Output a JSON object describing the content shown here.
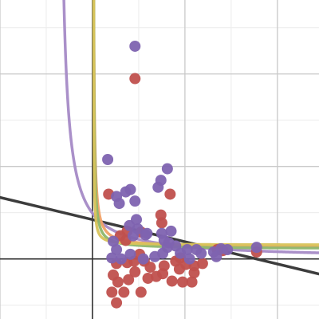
{
  "chart_data": {
    "type": "scatter",
    "title": "",
    "xlabel": "",
    "ylabel": "",
    "xlim": [
      -2,
      4.9
    ],
    "ylim": [
      -1.3,
      5.6
    ],
    "grid": true,
    "major_grid_step": 2,
    "minor_grid_step": 1,
    "axis_lines": {
      "x_zero": true,
      "y_zero": true
    },
    "colors": {
      "background": "#ffffff",
      "minor_grid": "#ececec",
      "major_grid": "#c9c9c9",
      "axis": "#2f2f2f",
      "purple_points": "#7e63b0",
      "red_points": "#c0504d",
      "curve_yellow": "#d8c35a",
      "curve_green": "#8db66b",
      "curve_orange": "#f0a267",
      "curve_lavender": "#a58ac6",
      "line_dark": "#3c3c3c"
    },
    "series": [
      {
        "color": "purple_points",
        "points": [
          [
            0.92,
            4.6
          ],
          [
            0.33,
            2.15
          ],
          [
            0.72,
            1.45
          ],
          [
            0.82,
            1.5
          ],
          [
            0.92,
            1.25
          ],
          [
            0.52,
            1.35
          ],
          [
            0.58,
            1.2
          ],
          [
            1.42,
            1.55
          ],
          [
            1.48,
            1.7
          ],
          [
            1.62,
            1.95
          ],
          [
            0.8,
            0.72
          ],
          [
            0.88,
            0.5
          ],
          [
            0.98,
            0.65
          ],
          [
            1.15,
            0.52
          ],
          [
            1.5,
            0.55
          ],
          [
            1.55,
            0.4
          ],
          [
            1.62,
            0.25
          ],
          [
            1.8,
            0.28
          ],
          [
            2.05,
            0.2
          ],
          [
            2.25,
            0.2
          ],
          [
            2.35,
            0.12
          ],
          [
            2.62,
            0.15
          ],
          [
            2.68,
            0.05
          ],
          [
            0.52,
            0.2
          ],
          [
            0.45,
            0.38
          ],
          [
            0.42,
            0.02
          ],
          [
            0.62,
            0.0
          ],
          [
            0.82,
            0.1
          ],
          [
            1.1,
            0.0
          ],
          [
            1.35,
            0.05
          ],
          [
            1.52,
            0.12
          ],
          [
            2.1,
            0.0
          ],
          [
            1.9,
            0.12
          ],
          [
            2.78,
            0.22
          ],
          [
            2.92,
            0.2
          ],
          [
            1.18,
            0.55
          ],
          [
            1.65,
            0.35
          ],
          [
            1.7,
            0.6
          ],
          [
            0.95,
            0.85
          ],
          [
            3.55,
            0.25
          ]
        ]
      },
      {
        "color": "red_points",
        "points": [
          [
            0.92,
            3.9
          ],
          [
            0.35,
            1.4
          ],
          [
            1.68,
            1.4
          ],
          [
            1.48,
            0.95
          ],
          [
            1.5,
            0.78
          ],
          [
            0.75,
            0.6
          ],
          [
            0.6,
            0.5
          ],
          [
            0.72,
            0.4
          ],
          [
            1.05,
            0.58
          ],
          [
            2.7,
            0.2
          ],
          [
            2.82,
            0.18
          ],
          [
            3.55,
            0.15
          ],
          [
            0.52,
            -0.1
          ],
          [
            0.75,
            -0.08
          ],
          [
            0.9,
            -0.05
          ],
          [
            1.02,
            0.1
          ],
          [
            1.12,
            -0.05
          ],
          [
            1.25,
            -0.18
          ],
          [
            1.55,
            -0.15
          ],
          [
            1.8,
            -0.05
          ],
          [
            1.9,
            0.02
          ],
          [
            2.02,
            -0.12
          ],
          [
            2.2,
            -0.15
          ],
          [
            2.38,
            -0.1
          ],
          [
            0.45,
            -0.35
          ],
          [
            0.55,
            -0.5
          ],
          [
            0.78,
            -0.45
          ],
          [
            0.92,
            -0.28
          ],
          [
            1.2,
            -0.42
          ],
          [
            1.38,
            -0.38
          ],
          [
            1.52,
            -0.32
          ],
          [
            1.72,
            -0.48
          ],
          [
            1.95,
            -0.5
          ],
          [
            2.15,
            -0.5
          ],
          [
            2.2,
            -0.3
          ],
          [
            0.42,
            -0.72
          ],
          [
            0.68,
            -0.72
          ],
          [
            1.05,
            -0.72
          ],
          [
            0.52,
            -0.95
          ],
          [
            1.88,
            -0.22
          ]
        ]
      }
    ],
    "curves": [
      {
        "color": "curve_lavender",
        "a": 0.74,
        "h": -0.75,
        "k": 0.0
      },
      {
        "color": "curve_orange",
        "a": 0.1,
        "h": 0.01,
        "k": 0.25
      },
      {
        "color": "curve_green",
        "a": 0.07,
        "h": 0.015,
        "k": 0.22
      },
      {
        "color": "curve_yellow",
        "a": 0.03,
        "h": 0.02,
        "k": 0.3
      }
    ],
    "lines": [
      {
        "color": "line_dark",
        "slope": -0.24,
        "intercept": 0.85
      }
    ]
  }
}
